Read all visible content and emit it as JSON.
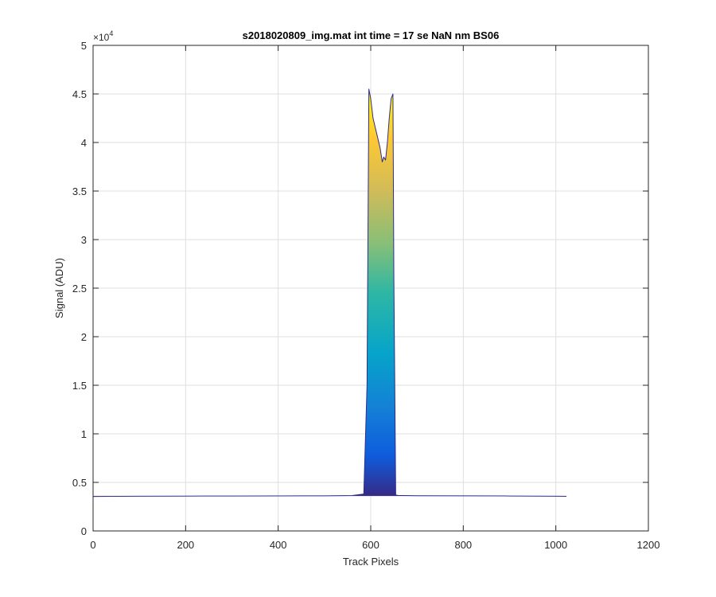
{
  "chart_data": {
    "type": "area",
    "title": "s2018020809_img.mat int time = 17 se  NaN nm BS06",
    "xlabel": "Track Pixels",
    "ylabel": "Signal (ADU)",
    "y_exponent_label": "×10",
    "y_exponent_power": "4",
    "xlim": [
      0,
      1200
    ],
    "ylim": [
      0,
      50000
    ],
    "x_ticks": [
      0,
      200,
      400,
      600,
      800,
      1000,
      1200
    ],
    "x_tick_labels": [
      "0",
      "200",
      "400",
      "600",
      "800",
      "1000",
      "1200"
    ],
    "y_ticks": [
      0,
      5000,
      10000,
      15000,
      20000,
      25000,
      30000,
      35000,
      40000,
      45000,
      50000
    ],
    "y_tick_labels": [
      "0",
      "0.5",
      "1",
      "1.5",
      "2",
      "2.5",
      "3",
      "3.5",
      "4",
      "4.5",
      "5"
    ],
    "grid": true,
    "colormap": "parula",
    "baseline": 3600,
    "series": [
      {
        "x": [
          0,
          100,
          200,
          300,
          400,
          500,
          560,
          585,
          592,
          596,
          600,
          605,
          610,
          615,
          620,
          625,
          628,
          632,
          636,
          640,
          644,
          648,
          650,
          654,
          660,
          700,
          800,
          900,
          1000,
          1023
        ],
        "y": [
          3550,
          3580,
          3590,
          3600,
          3610,
          3620,
          3650,
          3800,
          15000,
          45500,
          44500,
          42500,
          41500,
          40500,
          39500,
          38000,
          38500,
          38200,
          40000,
          42500,
          44500,
          45000,
          26000,
          3700,
          3650,
          3630,
          3620,
          3600,
          3580,
          3570
        ]
      }
    ]
  }
}
